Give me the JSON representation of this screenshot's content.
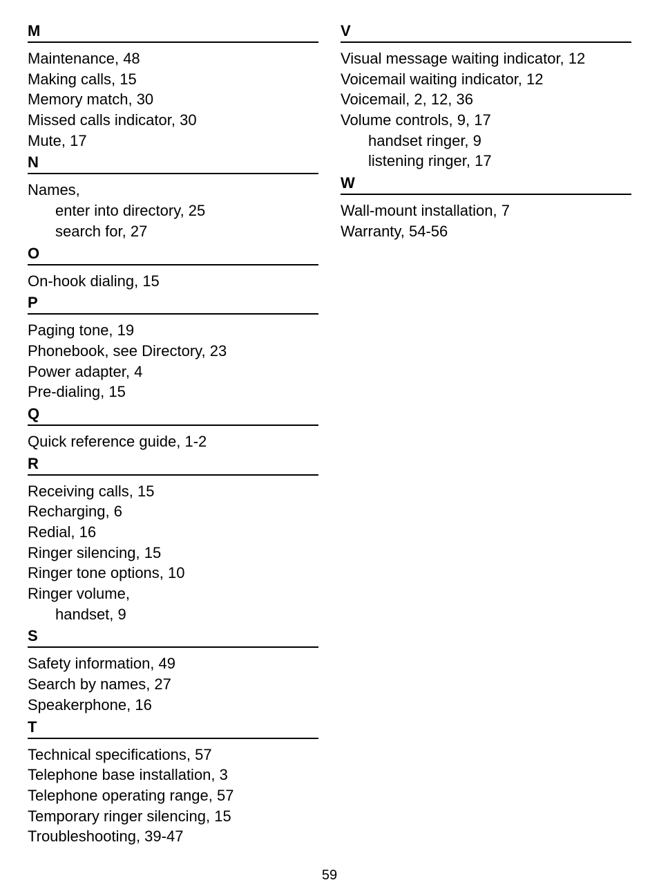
{
  "page_number": "59",
  "left_column": [
    {
      "letter": "M",
      "entries": [
        {
          "text": "Maintenance, 48"
        },
        {
          "text": "Making calls, 15"
        },
        {
          "text": "Memory match, 30"
        },
        {
          "text": "Missed calls indicator, 30"
        },
        {
          "text": "Mute, 17"
        }
      ]
    },
    {
      "letter": "N",
      "entries": [
        {
          "text": "Names,"
        },
        {
          "text": "enter into directory, 25",
          "sub": true
        },
        {
          "text": "search for, 27",
          "sub": true
        }
      ]
    },
    {
      "letter": "O",
      "entries": [
        {
          "text": "On-hook dialing, 15"
        }
      ]
    },
    {
      "letter": "P",
      "entries": [
        {
          "text": "Paging tone, 19"
        },
        {
          "text": "Phonebook, see Directory, 23"
        },
        {
          "text": "Power adapter, 4"
        },
        {
          "text": "Pre-dialing, 15"
        }
      ]
    },
    {
      "letter": "Q",
      "entries": [
        {
          "text": "Quick reference guide, 1-2"
        }
      ]
    },
    {
      "letter": "R",
      "entries": [
        {
          "text": "Receiving calls, 15"
        },
        {
          "text": "Recharging, 6"
        },
        {
          "text": "Redial, 16"
        },
        {
          "text": "Ringer silencing, 15"
        },
        {
          "text": "Ringer tone options, 10"
        },
        {
          "text": "Ringer volume,"
        },
        {
          "text": "handset, 9",
          "sub": true
        }
      ]
    },
    {
      "letter": "S",
      "entries": [
        {
          "text": "Safety information, 49"
        },
        {
          "text": "Search by names, 27"
        },
        {
          "text": "Speakerphone, 16"
        }
      ]
    },
    {
      "letter": "T",
      "entries": [
        {
          "text": "Technical specifications, 57"
        },
        {
          "text": "Telephone base installation, 3"
        },
        {
          "text": "Telephone operating range, 57"
        },
        {
          "text": "Temporary ringer silencing, 15"
        },
        {
          "text": "Troubleshooting, 39-47"
        }
      ]
    }
  ],
  "right_column": [
    {
      "letter": "V",
      "entries": [
        {
          "text": "Visual message waiting indicator, 12"
        },
        {
          "text": "Voicemail waiting indicator, 12"
        },
        {
          "text": "Voicemail, 2, 12, 36"
        },
        {
          "text": "Volume controls, 9, 17"
        },
        {
          "text": "handset ringer, 9",
          "sub": true
        },
        {
          "text": "listening ringer, 17",
          "sub": true
        }
      ]
    },
    {
      "letter": "W",
      "entries": [
        {
          "text": "Wall-mount installation, 7"
        },
        {
          "text": "Warranty, 54-56"
        }
      ]
    }
  ]
}
